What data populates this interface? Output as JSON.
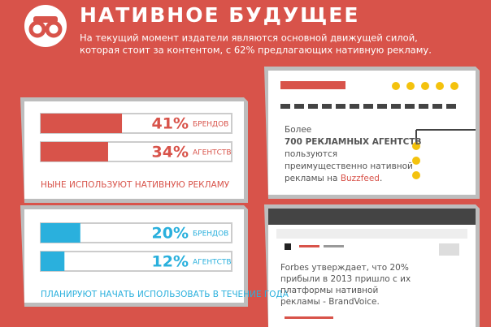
{
  "header": {
    "title": "НАТИВНОЕ БУДУЩЕЕ",
    "subtitle": [
      "На текущий момент издатели являются основной движущей силой,",
      "которая стоит за контентом, с 62% предлагающих нативную рекламу."
    ]
  },
  "panels": [
    {
      "color": "#d8534a",
      "caption": "НЫНЕ ИСПОЛЬЗУЮТ НАТИВНУЮ РЕКЛАМУ",
      "rows": [
        {
          "value": 41,
          "value_label": "41%",
          "unit": "БРЕНДОВ"
        },
        {
          "value": 34,
          "value_label": "34%",
          "unit": "АГЕНТСТВ"
        }
      ]
    },
    {
      "color": "#2ab0dd",
      "caption": "ПЛАНИРУЮТ НАЧАТЬ ИСПОЛЬЗОВАТЬ В ТЕЧЕНИЕ ГОДА",
      "rows": [
        {
          "value": 20,
          "value_label": "20%",
          "unit": "БРЕНДОВ"
        },
        {
          "value": 12,
          "value_label": "12%",
          "unit": "АГЕНТСТВ"
        }
      ]
    }
  ],
  "cards": [
    {
      "lines": [
        "Более",
        "700 РЕКЛАМНЫХ АГЕНТСТВ",
        "пользуются",
        "преимущественно нативной",
        "рекламы на "
      ],
      "highlight": "Buzzfeed",
      "end": "."
    },
    {
      "lines": [
        "Forbes утверждает, что 20%",
        "прибыли в 2013 пришло с их",
        "платформы нативной",
        "рекламы - BrandVoice."
      ]
    }
  ]
}
